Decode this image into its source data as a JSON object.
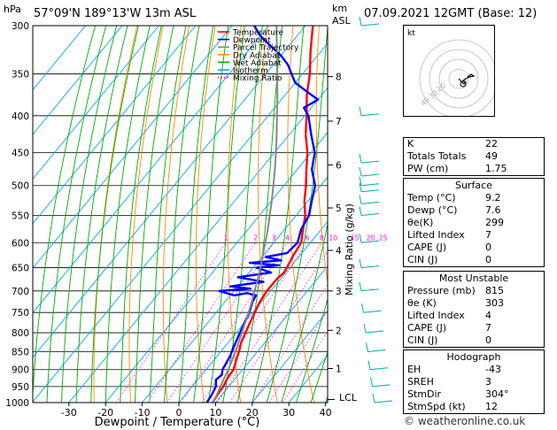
{
  "header": {
    "location": "57°09'N 189°13'W 13m ASL",
    "datetime": "07.09.2021 12GMT (Base: 12)",
    "hpa_unit": "hPa",
    "km_unit": "km",
    "asl_unit": "ASL",
    "mixing_ratio_label": "Mixing Ratio (g/kg)",
    "lcl_label": "LCL"
  },
  "chart_data": {
    "type": "line",
    "xlabel": "Dewpoint / Temperature (°C)",
    "ylabel": "hPa",
    "xlim": [
      -35,
      40
    ],
    "ylim": [
      1000,
      300
    ],
    "y_scale": "log",
    "x_ticks": [
      -30,
      -20,
      -10,
      0,
      10,
      20,
      30,
      40
    ],
    "pressure_levels": [
      300,
      350,
      400,
      450,
      500,
      550,
      600,
      650,
      700,
      750,
      800,
      850,
      900,
      950,
      1000
    ],
    "km_ticks": [
      {
        "label": "8",
        "p": 353
      },
      {
        "label": "7",
        "p": 407
      },
      {
        "label": "6",
        "p": 468
      },
      {
        "label": "5",
        "p": 537
      },
      {
        "label": "4",
        "p": 615
      },
      {
        "label": "3",
        "p": 700
      },
      {
        "label": "2",
        "p": 794
      },
      {
        "label": "1",
        "p": 897
      }
    ],
    "mixing_ratio_labels": [
      "1",
      "2",
      "3",
      "4",
      "6",
      "8",
      "10",
      "15",
      "20",
      "25"
    ],
    "mixing_ratio_values": [
      1,
      2,
      3,
      4,
      6,
      8,
      10,
      15,
      20,
      25
    ],
    "legend": [
      {
        "name": "Temperature",
        "color": "#ff0000"
      },
      {
        "name": "Dewpoint",
        "color": "#0000ff"
      },
      {
        "name": "Parcel Trajectory",
        "color": "#888888"
      },
      {
        "name": "Dry Adiabat",
        "color": "#ff8800"
      },
      {
        "name": "Wet Adiabat",
        "color": "#00aa00"
      },
      {
        "name": "Isotherm",
        "color": "#00aaff"
      },
      {
        "name": "Mixing Ratio",
        "color": "#ff00ff"
      }
    ],
    "legend_placement": "top-right",
    "series": [
      {
        "name": "Temperature",
        "color": "#ff0000",
        "points": [
          [
            9.2,
            1000
          ],
          [
            8.8,
            975
          ],
          [
            8.5,
            950
          ],
          [
            7.8,
            925
          ],
          [
            7.5,
            900
          ],
          [
            6.2,
            875
          ],
          [
            5.0,
            850
          ],
          [
            3.5,
            825
          ],
          [
            2.5,
            800
          ],
          [
            1.5,
            775
          ],
          [
            0.5,
            750
          ],
          [
            -0.5,
            725
          ],
          [
            -1.0,
            700
          ],
          [
            -1.0,
            690
          ],
          [
            -1.0,
            675
          ],
          [
            -0.5,
            660
          ],
          [
            -0.8,
            650
          ],
          [
            -1.8,
            625
          ],
          [
            -2.5,
            600
          ],
          [
            -5.0,
            575
          ],
          [
            -7.5,
            550
          ],
          [
            -11.0,
            525
          ],
          [
            -14.0,
            500
          ],
          [
            -17.5,
            475
          ],
          [
            -21.0,
            450
          ],
          [
            -25.5,
            425
          ],
          [
            -29.5,
            400
          ],
          [
            -34.0,
            375
          ],
          [
            -38.0,
            350
          ],
          [
            -43.0,
            325
          ],
          [
            -48.0,
            300
          ]
        ]
      },
      {
        "name": "Dewpoint",
        "color": "#0000ff",
        "points": [
          [
            7.6,
            1000
          ],
          [
            7.2,
            975
          ],
          [
            6.5,
            950
          ],
          [
            5.0,
            930
          ],
          [
            5.5,
            915
          ],
          [
            4.5,
            900
          ],
          [
            4.0,
            880
          ],
          [
            3.5,
            860
          ],
          [
            3.0,
            850
          ],
          [
            2.0,
            825
          ],
          [
            1.0,
            800
          ],
          [
            0.0,
            775
          ],
          [
            -1.0,
            750
          ],
          [
            -2.5,
            725
          ],
          [
            -3.0,
            710
          ],
          [
            -6.0,
            705
          ],
          [
            -9.0,
            710
          ],
          [
            -14.0,
            700
          ],
          [
            -6.0,
            695
          ],
          [
            -12.0,
            690
          ],
          [
            -4.0,
            680
          ],
          [
            -12.0,
            670
          ],
          [
            -4.0,
            660
          ],
          [
            -9.0,
            650
          ],
          [
            -3.5,
            645
          ],
          [
            -12.0,
            640
          ],
          [
            -4.0,
            635
          ],
          [
            -9.0,
            628
          ],
          [
            -4.0,
            620
          ],
          [
            -3.5,
            600
          ],
          [
            -5.5,
            575
          ],
          [
            -6.5,
            550
          ],
          [
            -9.0,
            525
          ],
          [
            -11.5,
            500
          ],
          [
            -16.0,
            475
          ],
          [
            -19.0,
            450
          ],
          [
            -24.0,
            425
          ],
          [
            -29.0,
            400
          ],
          [
            -32.0,
            390
          ],
          [
            -30.0,
            380
          ],
          [
            -35.0,
            370
          ],
          [
            -40.0,
            360
          ],
          [
            -43.0,
            350
          ],
          [
            -46.0,
            340
          ],
          [
            -50.0,
            330
          ],
          [
            -55.0,
            320
          ],
          [
            -60.0,
            310
          ],
          [
            -64.0,
            300
          ]
        ]
      },
      {
        "name": "Parcel Trajectory",
        "color": "#888888",
        "points": [
          [
            9.2,
            1000
          ],
          [
            8.6,
            975
          ],
          [
            7.7,
            950
          ],
          [
            6.9,
            925
          ],
          [
            6.1,
            900
          ],
          [
            5.1,
            875
          ],
          [
            4.0,
            850
          ],
          [
            2.8,
            825
          ],
          [
            1.5,
            800
          ],
          [
            0.2,
            775
          ],
          [
            -1.2,
            750
          ],
          [
            -2.7,
            725
          ],
          [
            -4.4,
            700
          ],
          [
            -6.1,
            675
          ],
          [
            -8.0,
            650
          ],
          [
            -10.1,
            625
          ],
          [
            -12.3,
            600
          ],
          [
            -14.6,
            575
          ],
          [
            -17.2,
            550
          ],
          [
            -19.9,
            525
          ],
          [
            -22.9,
            500
          ],
          [
            -26.1,
            475
          ],
          [
            -29.6,
            450
          ],
          [
            -33.4,
            425
          ],
          [
            -37.6,
            400
          ],
          [
            -42.0,
            375
          ],
          [
            -46.9,
            350
          ],
          [
            -52.2,
            325
          ],
          [
            -57.9,
            300
          ]
        ]
      }
    ]
  },
  "hodograph": {
    "label": "kt",
    "ring_labels": [
      "20",
      "30",
      "40"
    ]
  },
  "indices": {
    "k_label": "K",
    "k": "22",
    "tt_label": "Totals Totals",
    "tt": "49",
    "pw_label": "PW (cm)",
    "pw": "1.75",
    "surface_header": "Surface",
    "s_temp_label": "Temp (°C)",
    "s_temp": "9.2",
    "s_dewp_label": "Dewp (°C)",
    "s_dewp": "7.6",
    "s_theta_label": "θe(K)",
    "s_theta": "299",
    "s_li_label": "Lifted Index",
    "s_li": "7",
    "s_cape_label": "CAPE (J)",
    "s_cape": "0",
    "s_cin_label": "CIN (J)",
    "s_cin": "0",
    "mu_header": "Most Unstable",
    "mu_pres_label": "Pressure (mb)",
    "mu_pres": "815",
    "mu_theta_label": "θe (K)",
    "mu_theta": "303",
    "mu_li_label": "Lifted Index",
    "mu_li": "4",
    "mu_cape_label": "CAPE (J)",
    "mu_cape": "7",
    "mu_cin_label": "CIN (J)",
    "mu_cin": "0",
    "hodo_header": "Hodograph",
    "eh_label": "EH",
    "eh": "-43",
    "sreh_label": "SREH",
    "sreh": "3",
    "stmdir_label": "StmDir",
    "stmdir": "304°",
    "stmspd_label": "StmSpd (kt)",
    "stmspd": "12"
  },
  "credit": "© weatheronline.co.uk",
  "colors": {
    "temperature": "#ff0000",
    "dewpoint": "#0000ff",
    "parcel": "#888888",
    "dry_adiabat": "#ff8800",
    "wet_adiabat": "#00aa00",
    "isotherm": "#00aaff",
    "mixing_ratio": "#ff00ff",
    "wind_barb": "#00aaaa"
  }
}
